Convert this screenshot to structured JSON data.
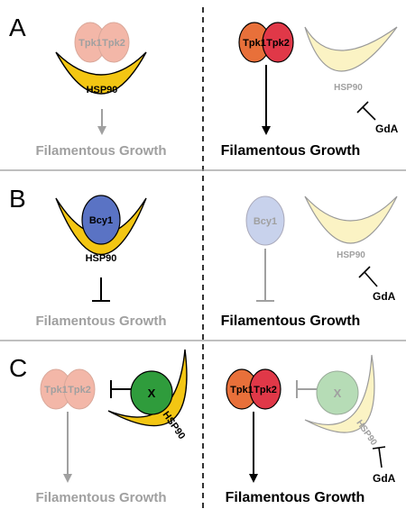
{
  "colors": {
    "hsp90": "#f3c613",
    "hsp90_faded": "#fbf3c4",
    "tpk1": "#e8703a",
    "tpk2": "#e03848",
    "tpk_faded": "#f3b7a8",
    "bcy1": "#5a73c4",
    "bcy1_faded": "#c8d2ec",
    "x_protein": "#2f9c3c",
    "x_faded": "#b6dcb6",
    "text_active": "#000000",
    "text_faded": "#a0a0a0",
    "divider": "#999999"
  },
  "panels": [
    {
      "letter": "A",
      "left": {
        "tpk1": "Tpk1",
        "tpk2": "Tpk2",
        "hsp90": "HSP90",
        "outcome": "Filamentous Growth"
      },
      "right": {
        "tpk1": "Tpk1",
        "tpk2": "Tpk2",
        "hsp90": "HSP90",
        "inhibitor": "GdA",
        "outcome": "Filamentous Growth"
      }
    },
    {
      "letter": "B",
      "left": {
        "bcy1": "Bcy1",
        "hsp90": "HSP90",
        "outcome": "Filamentous Growth"
      },
      "right": {
        "bcy1": "Bcy1",
        "hsp90": "HSP90",
        "inhibitor": "GdA",
        "outcome": "Filamentous Growth"
      }
    },
    {
      "letter": "C",
      "left": {
        "tpk1": "Tpk1",
        "tpk2": "Tpk2",
        "x": "X",
        "hsp90": "HSP90",
        "outcome": "Filamentous Growth"
      },
      "right": {
        "tpk1": "Tpk1",
        "tpk2": "Tpk2",
        "x": "X",
        "hsp90": "HSP90",
        "inhibitor": "GdA",
        "outcome": "Filamentous Growth"
      }
    }
  ]
}
